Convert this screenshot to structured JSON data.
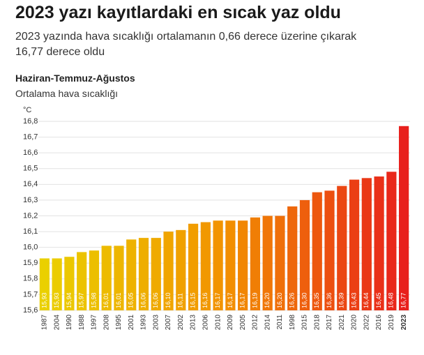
{
  "chart_data": {
    "type": "bar",
    "title": "2023 yazı kayıtlardaki en sıcak yaz oldu",
    "subtitle": "2023 yazında hava sıcaklığı ortalamanın 0,66 derece üzerine çıkarak 16,77 derece oldu",
    "chart_heading": "Haziran-Temmuz-Ağustos",
    "y_label": "Ortalama hava sıcaklığı",
    "y_unit": "°C",
    "categories": [
      "1987",
      "2004",
      "1990",
      "1988",
      "1997",
      "2008",
      "1995",
      "2001",
      "1993",
      "2003",
      "2007",
      "2002",
      "2013",
      "2006",
      "2010",
      "2009",
      "2005",
      "2012",
      "2014",
      "2011",
      "1998",
      "2015",
      "2018",
      "2017",
      "2021",
      "2020",
      "2022",
      "2016",
      "2019",
      "2023"
    ],
    "values": [
      15.93,
      15.93,
      15.94,
      15.97,
      15.98,
      16.01,
      16.01,
      16.05,
      16.06,
      16.06,
      16.1,
      16.11,
      16.15,
      16.16,
      16.17,
      16.17,
      16.17,
      16.19,
      16.2,
      16.2,
      16.26,
      16.3,
      16.35,
      16.36,
      16.39,
      16.43,
      16.44,
      16.45,
      16.48,
      16.77
    ],
    "value_labels": [
      "15,93",
      "15,93",
      "15,94",
      "15,97",
      "15,98",
      "16,01",
      "16,01",
      "16,05",
      "16,06",
      "16,06",
      "16,10",
      "16,11",
      "16,15",
      "16,16",
      "16,17",
      "16,17",
      "16,17",
      "16,19",
      "16,20",
      "16,20",
      "16,26",
      "16,30",
      "16,35",
      "16,36",
      "16,39",
      "16,43",
      "16,44",
      "16,45",
      "16,48",
      "16,77"
    ],
    "color_gradient": [
      "#ead000",
      "#f29200",
      "#e8201c"
    ],
    "ylim": [
      15.6,
      16.8
    ],
    "yticks": [
      {
        "value": 15.6,
        "label": "15,6"
      },
      {
        "value": 15.7,
        "label": "15,7"
      },
      {
        "value": 15.8,
        "label": "15,8"
      },
      {
        "value": 15.9,
        "label": "15,9"
      },
      {
        "value": 16.0,
        "label": "16,0"
      },
      {
        "value": 16.1,
        "label": "16,1"
      },
      {
        "value": 16.2,
        "label": "16,2"
      },
      {
        "value": 16.3,
        "label": "16,3"
      },
      {
        "value": 16.4,
        "label": "16,4"
      },
      {
        "value": 16.5,
        "label": "16,5"
      },
      {
        "value": 16.6,
        "label": "16,6"
      },
      {
        "value": 16.7,
        "label": "16,7"
      },
      {
        "value": 16.8,
        "label": "16,8"
      }
    ],
    "grid": true
  }
}
